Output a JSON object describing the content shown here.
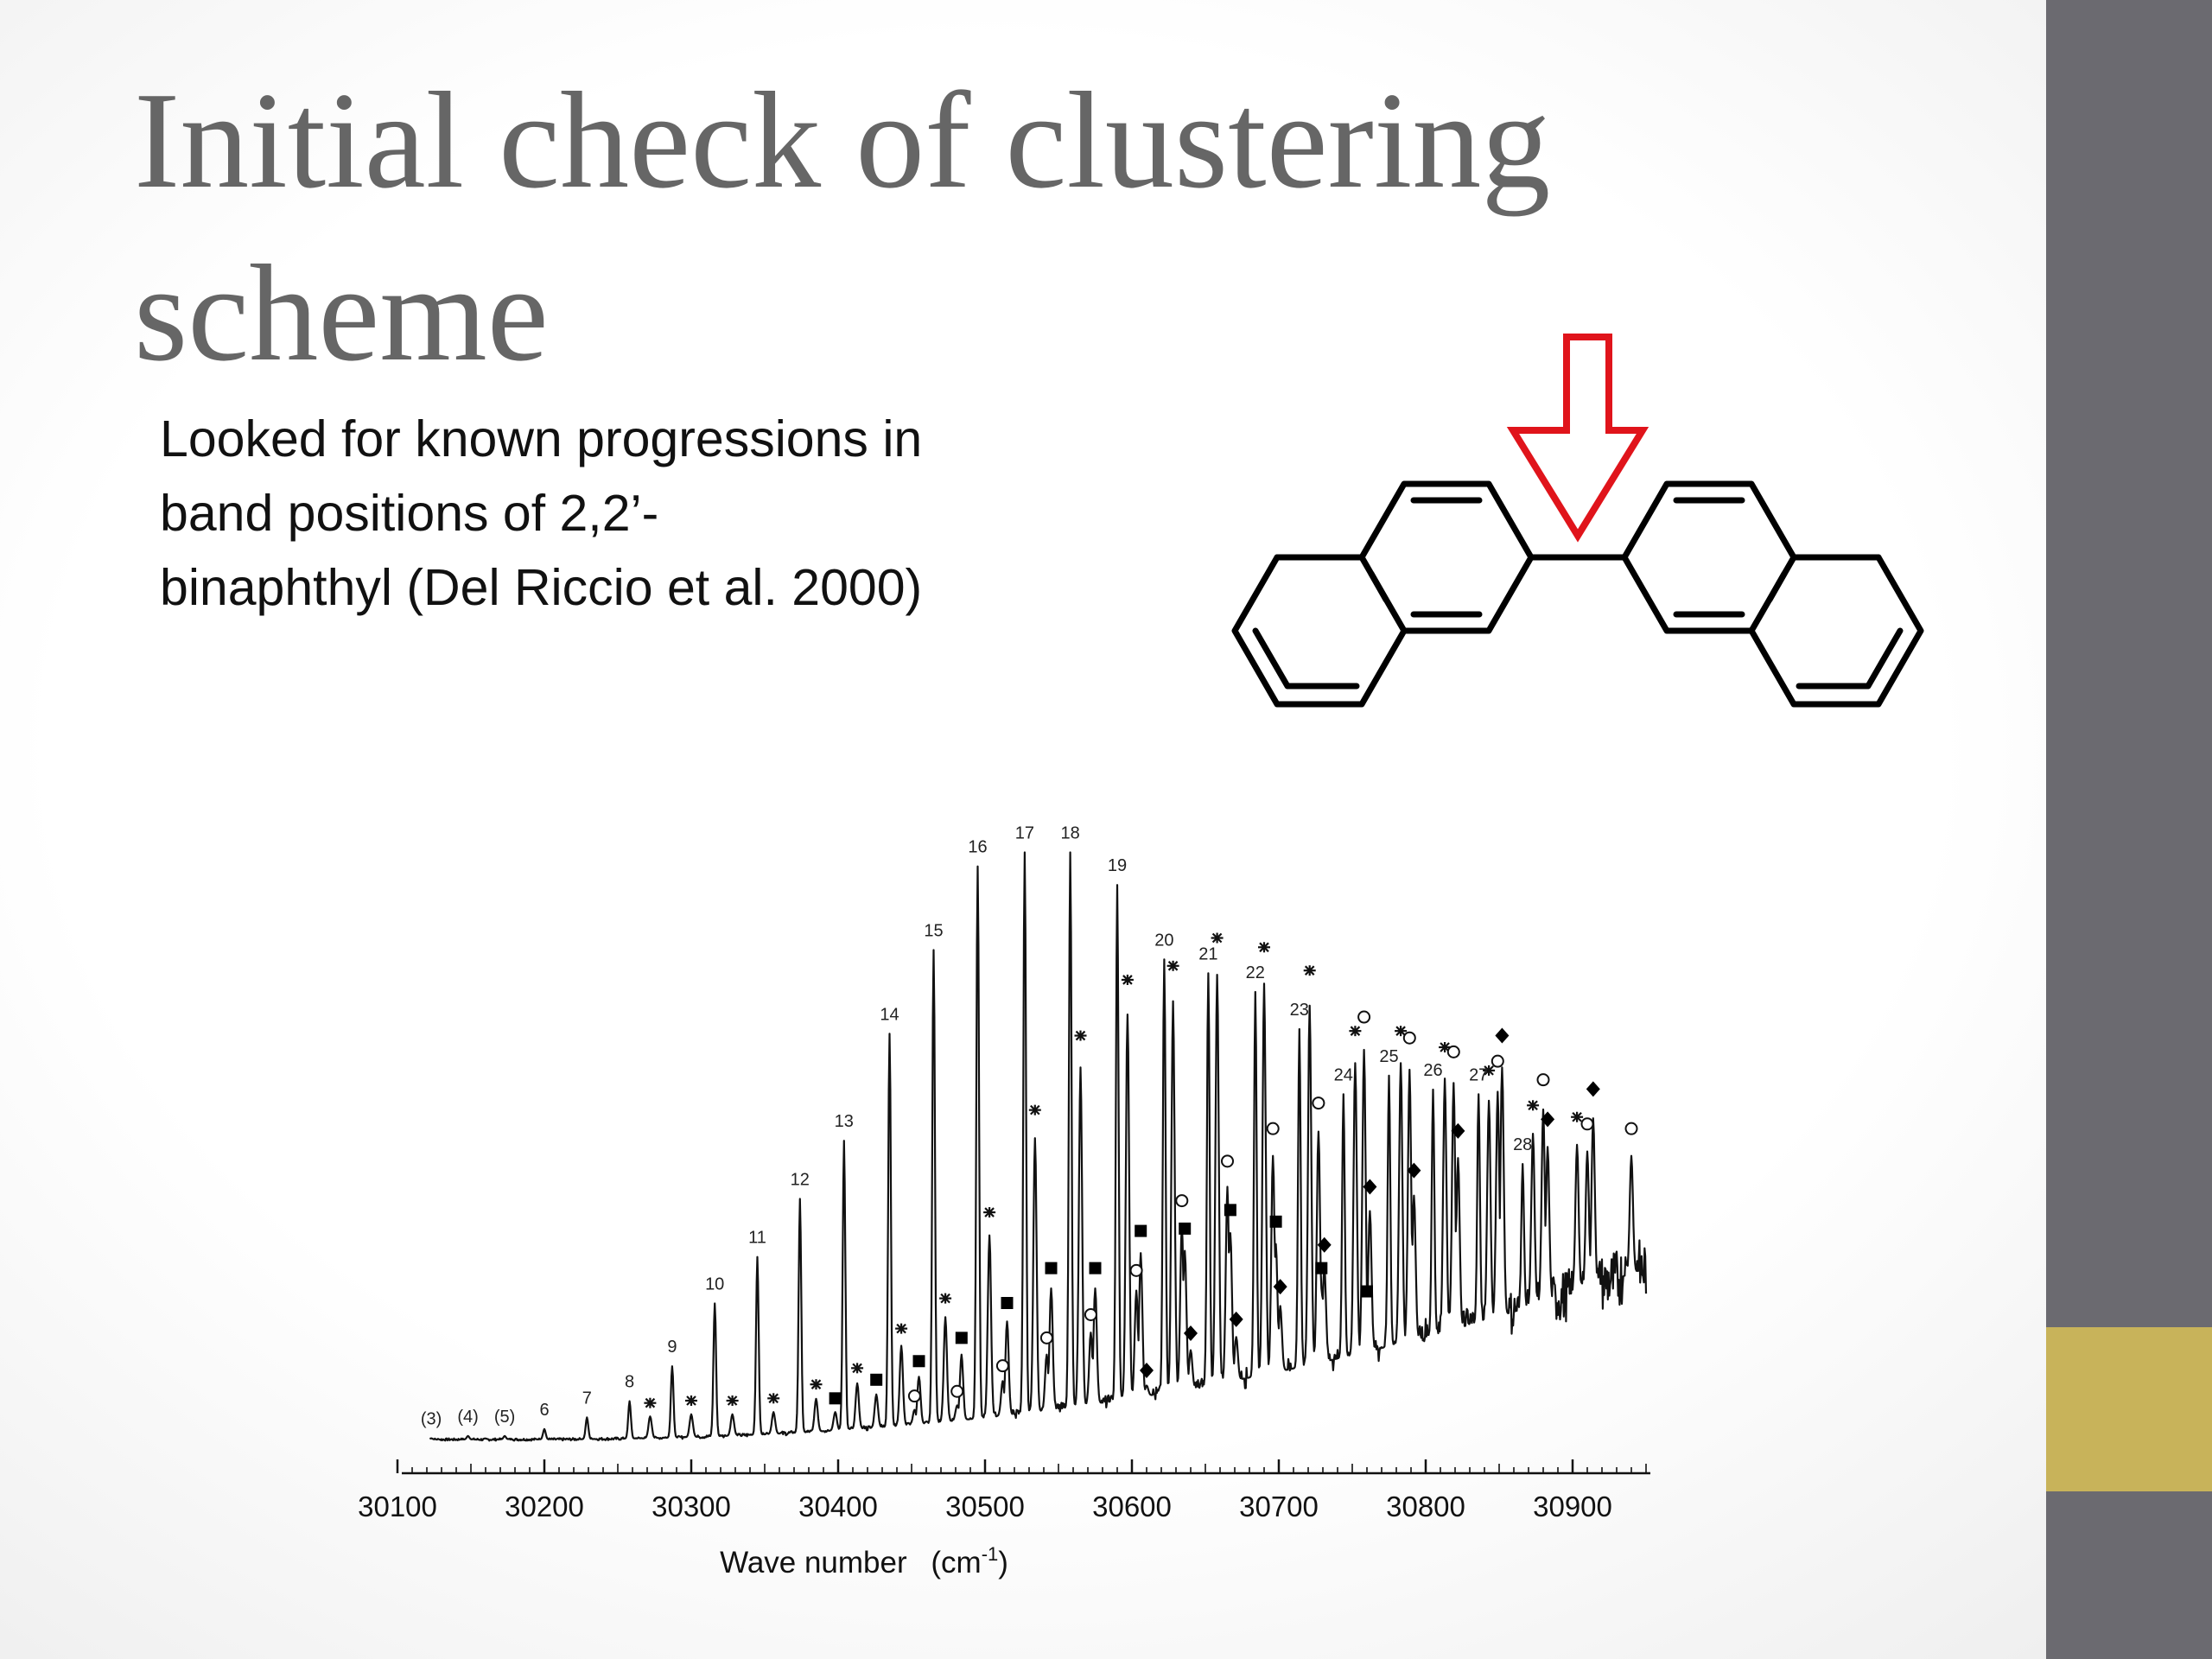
{
  "slide": {
    "title_line1": "Initial check of clustering",
    "title_line2": "scheme",
    "body_line1": "Looked for known progressions in",
    "body_line2": "band positions of 2,2’-",
    "body_line3": "binaphthyl (Del Riccio et al. 2000)"
  },
  "colors": {
    "sidebar": "#6b6a70",
    "accent": "#c8b35a",
    "arrow": "#e0141b",
    "title": "#666666"
  },
  "chart_data": {
    "type": "line",
    "title": "",
    "xlabel": "Wave number",
    "xlabel_unit": "(cm",
    "xlabel_unit_sup": "-1",
    "xlabel_unit_end": ")",
    "xlim": [
      30100,
      30950
    ],
    "xticks": [
      30100,
      30200,
      30300,
      30400,
      30500,
      30600,
      30700,
      30800,
      30900
    ],
    "progression_labels": [
      {
        "label": "(3)",
        "x": 30123
      },
      {
        "label": "(4)",
        "x": 30148
      },
      {
        "label": "(5)",
        "x": 30173
      },
      {
        "label": "6",
        "x": 30200
      },
      {
        "label": "7",
        "x": 30229
      },
      {
        "label": "8",
        "x": 30258
      },
      {
        "label": "9",
        "x": 30287
      },
      {
        "label": "10",
        "x": 30316
      },
      {
        "label": "11",
        "x": 30345
      },
      {
        "label": "12",
        "x": 30374
      },
      {
        "label": "13",
        "x": 30404
      },
      {
        "label": "14",
        "x": 30435
      },
      {
        "label": "15",
        "x": 30465
      },
      {
        "label": "16",
        "x": 30495
      },
      {
        "label": "17",
        "x": 30527
      },
      {
        "label": "18",
        "x": 30558
      },
      {
        "label": "19",
        "x": 30590
      },
      {
        "label": "20",
        "x": 30622
      },
      {
        "label": "21",
        "x": 30652
      },
      {
        "label": "22",
        "x": 30684
      },
      {
        "label": "23",
        "x": 30714
      },
      {
        "label": "24",
        "x": 30744
      },
      {
        "label": "25",
        "x": 30775
      },
      {
        "label": "26",
        "x": 30805
      },
      {
        "label": "27",
        "x": 30836
      },
      {
        "label": "28",
        "x": 30866
      }
    ],
    "main_peaks": [
      {
        "x": 30123,
        "y": 2
      },
      {
        "x": 30148,
        "y": 3
      },
      {
        "x": 30173,
        "y": 3
      },
      {
        "x": 30200,
        "y": 6
      },
      {
        "x": 30229,
        "y": 11
      },
      {
        "x": 30258,
        "y": 18
      },
      {
        "x": 30287,
        "y": 33
      },
      {
        "x": 30316,
        "y": 60
      },
      {
        "x": 30345,
        "y": 80
      },
      {
        "x": 30374,
        "y": 105
      },
      {
        "x": 30404,
        "y": 130
      },
      {
        "x": 30435,
        "y": 176
      },
      {
        "x": 30465,
        "y": 212
      },
      {
        "x": 30495,
        "y": 248
      },
      {
        "x": 30527,
        "y": 254
      },
      {
        "x": 30558,
        "y": 254
      },
      {
        "x": 30590,
        "y": 240
      },
      {
        "x": 30622,
        "y": 208
      },
      {
        "x": 30652,
        "y": 202
      },
      {
        "x": 30684,
        "y": 194
      },
      {
        "x": 30714,
        "y": 178
      },
      {
        "x": 30744,
        "y": 150
      },
      {
        "x": 30775,
        "y": 158
      },
      {
        "x": 30805,
        "y": 152
      },
      {
        "x": 30836,
        "y": 150
      },
      {
        "x": 30866,
        "y": 120
      }
    ],
    "marker_series": [
      {
        "marker": "asterisk",
        "points": [
          {
            "x": 30272,
            "y": 12
          },
          {
            "x": 30300,
            "y": 13
          },
          {
            "x": 30328,
            "y": 13
          },
          {
            "x": 30356,
            "y": 14
          },
          {
            "x": 30385,
            "y": 20
          },
          {
            "x": 30413,
            "y": 27
          },
          {
            "x": 30443,
            "y": 44
          },
          {
            "x": 30473,
            "y": 57
          },
          {
            "x": 30503,
            "y": 94
          },
          {
            "x": 30534,
            "y": 138
          },
          {
            "x": 30565,
            "y": 170
          },
          {
            "x": 30597,
            "y": 194
          },
          {
            "x": 30628,
            "y": 200
          },
          {
            "x": 30658,
            "y": 212
          },
          {
            "x": 30690,
            "y": 208
          },
          {
            "x": 30721,
            "y": 198
          },
          {
            "x": 30752,
            "y": 172
          },
          {
            "x": 30783,
            "y": 172
          },
          {
            "x": 30813,
            "y": 165
          },
          {
            "x": 30843,
            "y": 155
          },
          {
            "x": 30873,
            "y": 140
          },
          {
            "x": 30903,
            "y": 135
          }
        ]
      },
      {
        "marker": "filled-square",
        "points": [
          {
            "x": 30398,
            "y": 14
          },
          {
            "x": 30426,
            "y": 22
          },
          {
            "x": 30455,
            "y": 30
          },
          {
            "x": 30484,
            "y": 40
          },
          {
            "x": 30515,
            "y": 55
          },
          {
            "x": 30545,
            "y": 70
          },
          {
            "x": 30575,
            "y": 70
          },
          {
            "x": 30606,
            "y": 86
          },
          {
            "x": 30636,
            "y": 87
          },
          {
            "x": 30667,
            "y": 95
          },
          {
            "x": 30698,
            "y": 90
          },
          {
            "x": 30729,
            "y": 70
          },
          {
            "x": 30760,
            "y": 60
          }
        ]
      },
      {
        "marker": "open-circle",
        "points": [
          {
            "x": 30452,
            "y": 15
          },
          {
            "x": 30481,
            "y": 17
          },
          {
            "x": 30512,
            "y": 28
          },
          {
            "x": 30542,
            "y": 40
          },
          {
            "x": 30572,
            "y": 50
          },
          {
            "x": 30603,
            "y": 69
          },
          {
            "x": 30634,
            "y": 99
          },
          {
            "x": 30665,
            "y": 116
          },
          {
            "x": 30696,
            "y": 130
          },
          {
            "x": 30727,
            "y": 141
          },
          {
            "x": 30758,
            "y": 178
          },
          {
            "x": 30789,
            "y": 169
          },
          {
            "x": 30819,
            "y": 163
          },
          {
            "x": 30849,
            "y": 159
          },
          {
            "x": 30880,
            "y": 151
          },
          {
            "x": 30910,
            "y": 132
          },
          {
            "x": 30940,
            "y": 130
          }
        ]
      },
      {
        "marker": "filled-diamond",
        "points": [
          {
            "x": 30610,
            "y": 26
          },
          {
            "x": 30640,
            "y": 42
          },
          {
            "x": 30671,
            "y": 48
          },
          {
            "x": 30701,
            "y": 62
          },
          {
            "x": 30731,
            "y": 80
          },
          {
            "x": 30762,
            "y": 105
          },
          {
            "x": 30792,
            "y": 112
          },
          {
            "x": 30822,
            "y": 129
          },
          {
            "x": 30852,
            "y": 170
          },
          {
            "x": 30883,
            "y": 134
          },
          {
            "x": 30914,
            "y": 147
          }
        ]
      }
    ],
    "ylim": [
      0,
      275
    ],
    "grid": false,
    "legend": "none"
  }
}
